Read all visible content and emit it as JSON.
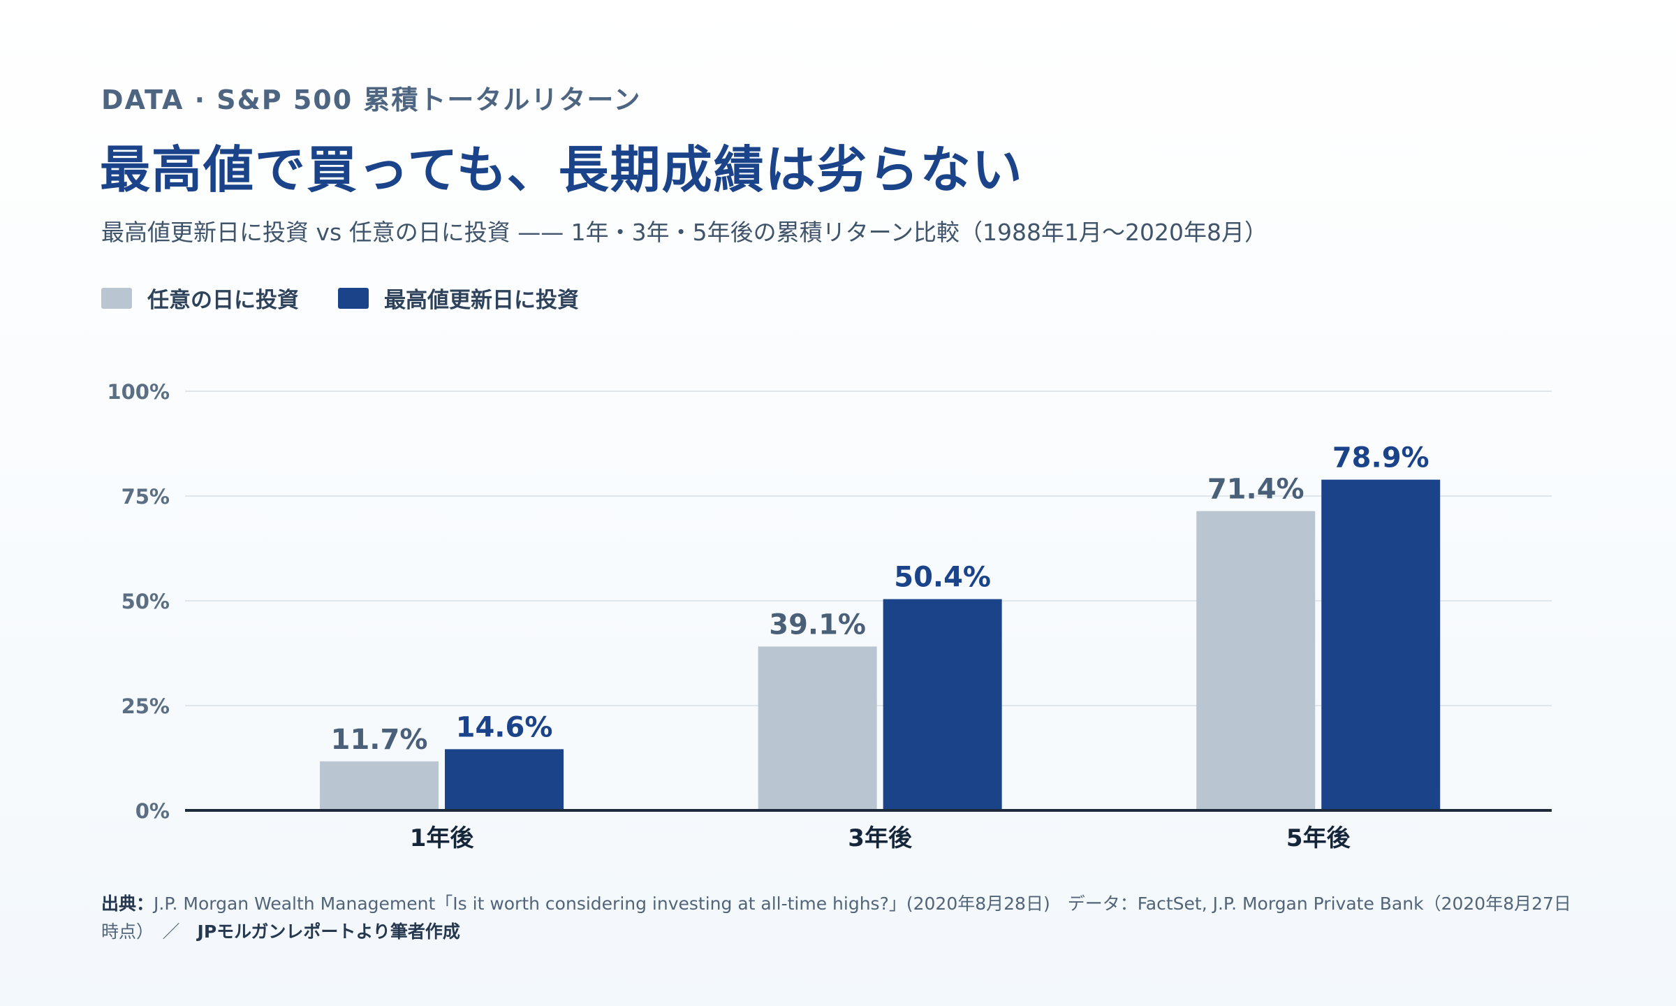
{
  "header": {
    "eyebrow": "DATA · S&P 500 累積トータルリターン",
    "title": "最高値で買っても、長期成績は劣らない",
    "subtitle": "最高値更新日に投資 vs 任意の日に投資 —— 1年・3年・5年後の累積リターン比較（1988年1月〜2020年8月）"
  },
  "legend": {
    "items": [
      {
        "label": "任意の日に投資",
        "color": "#b9c5d0"
      },
      {
        "label": "最高値更新日に投資",
        "color": "#1a4389"
      }
    ]
  },
  "chart_data": {
    "type": "bar",
    "categories": [
      "1年後",
      "3年後",
      "5年後"
    ],
    "series": [
      {
        "name": "任意の日に投資",
        "values": [
          11.7,
          39.1,
          71.4
        ],
        "labels": [
          "11.7%",
          "39.1%",
          "71.4%"
        ],
        "color": "#b9c5d0",
        "label_color": "#4a6079"
      },
      {
        "name": "最高値更新日に投資",
        "values": [
          14.6,
          50.4,
          78.9
        ],
        "labels": [
          "14.6%",
          "50.4%",
          "78.9%"
        ],
        "color": "#1a4389",
        "label_color": "#1a4389"
      }
    ],
    "ylim": [
      0,
      100
    ],
    "yticks": [
      0,
      25,
      50,
      75,
      100
    ],
    "ytick_labels": [
      "0%",
      "25%",
      "50%",
      "75%",
      "100%"
    ],
    "grid": true,
    "legend_position": "top-left"
  },
  "source": {
    "lead": "出典：",
    "text": "J.P. Morgan Wealth Management「Is it worth considering investing at all-time highs?」(2020年8月28日)　データ：FactSet, J.P. Morgan Private Bank（2020年8月27日時点）　／　",
    "credit": "JPモルガンレポートより筆者作成"
  }
}
